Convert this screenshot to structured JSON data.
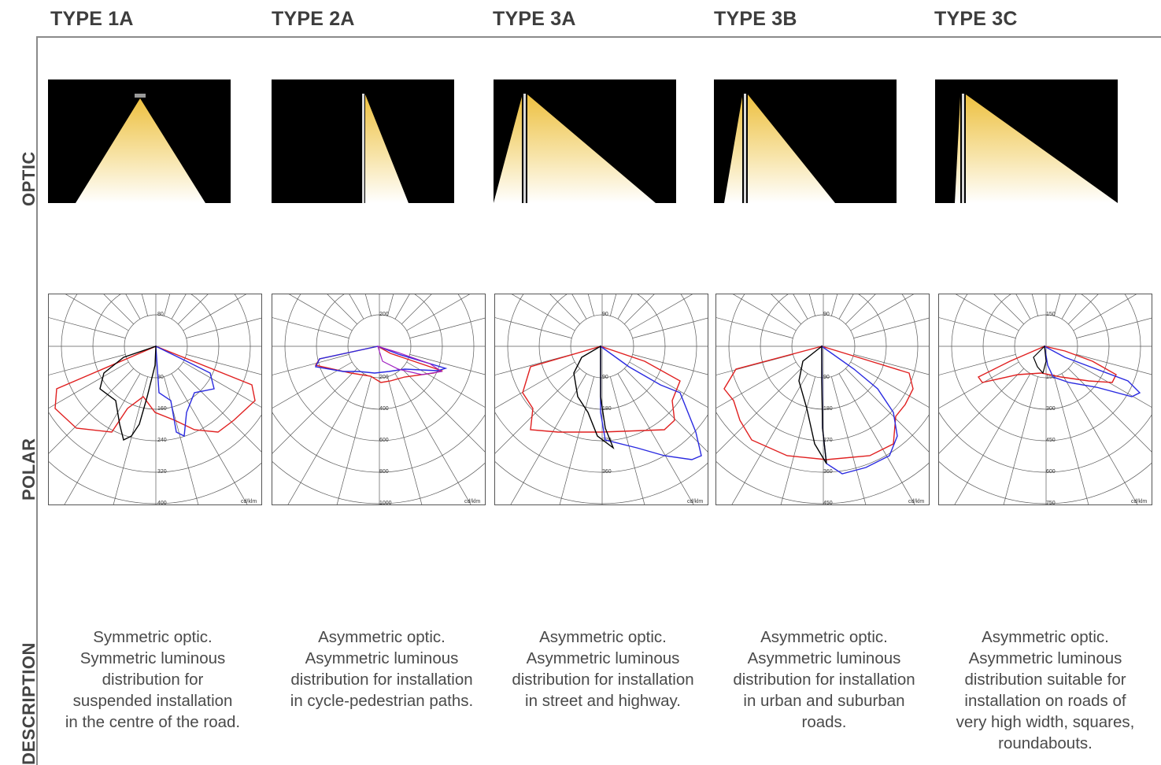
{
  "row_labels": {
    "optic": "OPTIC",
    "polar": "POLAR",
    "description": "DESCRIPTION"
  },
  "polar_unit": "cd/klm",
  "columns": [
    {
      "title": "TYPE 1A",
      "polar_ticks": [
        "80",
        "80",
        "160",
        "240",
        "320",
        "400"
      ],
      "description_lines": [
        "Symmetric optic.",
        "Symmetric luminous",
        "distribution for",
        "suspended installation",
        "in the centre of the road."
      ]
    },
    {
      "title": "TYPE 2A",
      "polar_ticks": [
        "200",
        "200",
        "400",
        "600",
        "800",
        "1000"
      ],
      "description_lines": [
        "Asymmetric optic.",
        "Asymmetric luminous",
        "distribution for installation",
        "in cycle-pedestrian paths."
      ]
    },
    {
      "title": "TYPE 3A",
      "polar_ticks": [
        "90",
        "90",
        "180",
        "270",
        "360",
        "450"
      ],
      "description_lines": [
        "Asymmetric optic.",
        "Asymmetric luminous",
        "distribution for installation",
        "in street and highway."
      ]
    },
    {
      "title": "TYPE 3B",
      "polar_ticks": [
        "90",
        "90",
        "180",
        "270",
        "360",
        "450"
      ],
      "description_lines": [
        "Asymmetric optic.",
        "Asymmetric luminous",
        "distribution for installation",
        "in urban and suburban",
        "roads."
      ]
    },
    {
      "title": "TYPE 3C",
      "polar_ticks": [
        "150",
        "150",
        "300",
        "450",
        "600",
        "750"
      ],
      "description_lines": [
        "Asymmetric optic.",
        "Asymmetric luminous",
        "distribution suitable for",
        "installation on roads of",
        "very high width, squares,",
        "roundabouts."
      ]
    }
  ],
  "colors": {
    "curve_c0": "#e02020",
    "curve_c90": "#2a2ae0",
    "curve_max": "#000000",
    "beam": "#f0c850",
    "grid": "#5a5a5a"
  }
}
